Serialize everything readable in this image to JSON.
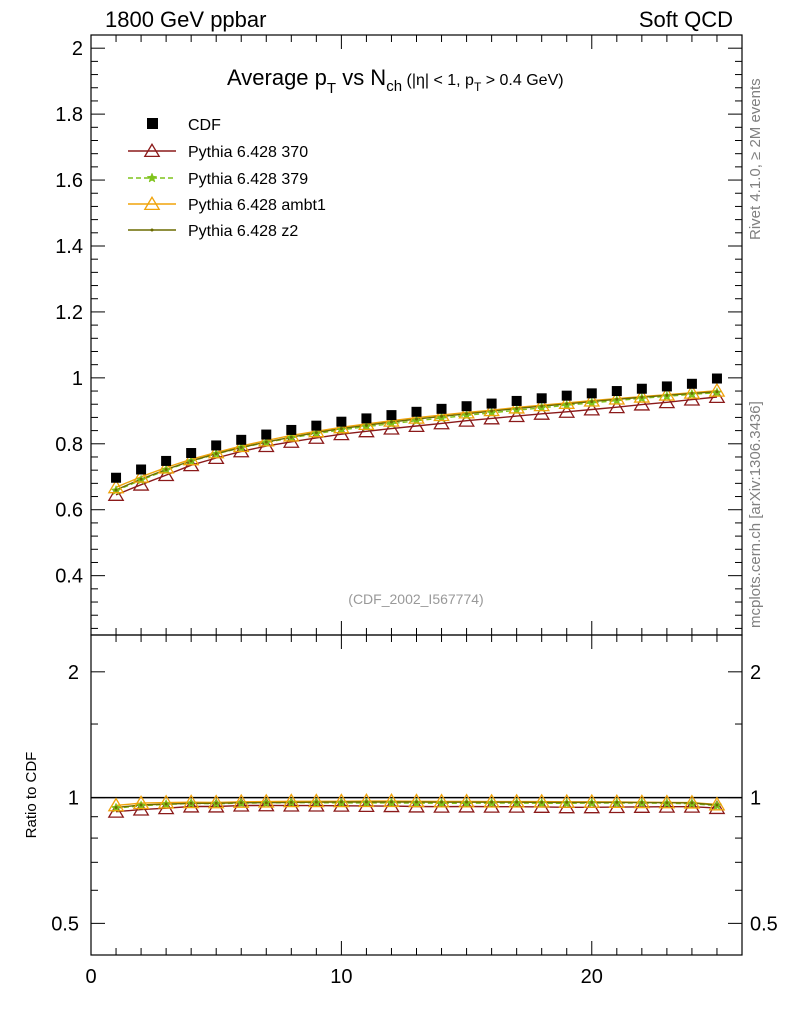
{
  "header": {
    "energy_label": "1800 GeV ppbar",
    "category_label": "Soft QCD"
  },
  "side": {
    "rivet_label": "Rivet 4.1.0, ≥ 2M events",
    "source_label": "mcplots.cern.ch [arXiv:1306.3436]"
  },
  "plot": {
    "title_main": "Average p",
    "title_sub1": "T",
    "title_mid": " vs N",
    "title_sub2": "ch",
    "title_cut_a": " (|η| < 1, p",
    "title_cut_sub": "T",
    "title_cut_b": " > 0.4 GeV)",
    "analysis_id": "(CDF_2002_I567774)",
    "ratio_ylabel": "Ratio to CDF"
  },
  "chart_data": [
    {
      "type": "scatter",
      "title": "Average pT vs Nch (|η| < 1, pT > 0.4 GeV)",
      "xlim": [
        0,
        26
      ],
      "ylim": [
        0.22,
        2.04
      ],
      "yticks": [
        0.4,
        0.6,
        0.8,
        1,
        1.2,
        1.4,
        1.6,
        1.8,
        2
      ],
      "ytick_labels": [
        "0.4",
        "0.6",
        "0.8",
        "1",
        "1.2",
        "1.4",
        "1.6",
        "1.8",
        "2"
      ],
      "x": [
        1,
        2,
        3,
        4,
        5,
        6,
        7,
        8,
        9,
        10,
        11,
        12,
        13,
        14,
        15,
        16,
        17,
        18,
        19,
        20,
        21,
        22,
        23,
        24,
        25
      ],
      "series": [
        {
          "name": "CDF",
          "style": "data",
          "color": "#000000",
          "values": [
            0.697,
            0.722,
            0.748,
            0.772,
            0.795,
            0.812,
            0.828,
            0.842,
            0.855,
            0.867,
            0.877,
            0.887,
            0.897,
            0.906,
            0.914,
            0.922,
            0.93,
            0.938,
            0.946,
            0.953,
            0.96,
            0.967,
            0.974,
            0.982,
            0.998
          ]
        },
        {
          "name": "Pythia 6.428 370",
          "style": "triangle-open",
          "color": "#8b1a1a",
          "values": [
            0.645,
            0.676,
            0.705,
            0.735,
            0.757,
            0.777,
            0.793,
            0.806,
            0.818,
            0.829,
            0.838,
            0.846,
            0.854,
            0.862,
            0.87,
            0.877,
            0.884,
            0.891,
            0.897,
            0.904,
            0.911,
            0.919,
            0.926,
            0.934,
            0.942
          ]
        },
        {
          "name": "Pythia 6.428 379",
          "style": "star-dashed",
          "color": "#7fc31c",
          "values": [
            0.658,
            0.69,
            0.72,
            0.747,
            0.769,
            0.788,
            0.804,
            0.818,
            0.831,
            0.842,
            0.852,
            0.861,
            0.87,
            0.878,
            0.886,
            0.894,
            0.902,
            0.909,
            0.917,
            0.924,
            0.931,
            0.938,
            0.944,
            0.95,
            0.955
          ]
        },
        {
          "name": "Pythia 6.428 ambt1",
          "style": "triangle-open",
          "color": "#f0a30a",
          "values": [
            0.668,
            0.7,
            0.728,
            0.753,
            0.774,
            0.793,
            0.81,
            0.825,
            0.838,
            0.85,
            0.86,
            0.87,
            0.879,
            0.887,
            0.895,
            0.902,
            0.91,
            0.917,
            0.924,
            0.931,
            0.937,
            0.943,
            0.949,
            0.955,
            0.961
          ]
        },
        {
          "name": "Pythia 6.428 z2",
          "style": "dot-line",
          "color": "#6b6b00",
          "values": [
            0.66,
            0.693,
            0.722,
            0.748,
            0.77,
            0.789,
            0.805,
            0.82,
            0.834,
            0.846,
            0.856,
            0.866,
            0.875,
            0.883,
            0.891,
            0.899,
            0.907,
            0.914,
            0.921,
            0.928,
            0.935,
            0.941,
            0.947,
            0.953,
            0.958
          ]
        }
      ],
      "legend_position": "top-left"
    },
    {
      "type": "line",
      "ylabel": "Ratio to CDF",
      "xlim": [
        0,
        26
      ],
      "ylim": [
        0.42,
        2.45
      ],
      "yscale": "log",
      "yticks": [
        0.5,
        1,
        2
      ],
      "ytick_labels": [
        "0.5",
        "1",
        "2"
      ],
      "xticks": [
        0,
        10,
        20
      ],
      "xtick_labels": [
        "0",
        "10",
        "20"
      ],
      "x": [
        1,
        2,
        3,
        4,
        5,
        6,
        7,
        8,
        9,
        10,
        11,
        12,
        13,
        14,
        15,
        16,
        17,
        18,
        19,
        20,
        21,
        22,
        23,
        24,
        25
      ],
      "series": [
        {
          "name": "Pythia 6.428 370",
          "color": "#8b1a1a",
          "values": [
            0.925,
            0.936,
            0.943,
            0.952,
            0.952,
            0.957,
            0.958,
            0.957,
            0.957,
            0.956,
            0.955,
            0.954,
            0.952,
            0.951,
            0.952,
            0.951,
            0.951,
            0.95,
            0.948,
            0.948,
            0.949,
            0.95,
            0.951,
            0.951,
            0.944
          ]
        },
        {
          "name": "Pythia 6.428 379",
          "color": "#7fc31c",
          "values": [
            0.944,
            0.956,
            0.963,
            0.968,
            0.967,
            0.97,
            0.971,
            0.972,
            0.972,
            0.971,
            0.971,
            0.971,
            0.97,
            0.969,
            0.969,
            0.97,
            0.97,
            0.969,
            0.969,
            0.97,
            0.97,
            0.97,
            0.969,
            0.967,
            0.957
          ]
        },
        {
          "name": "Pythia 6.428 ambt1",
          "color": "#f0a30a",
          "values": [
            0.958,
            0.97,
            0.973,
            0.975,
            0.974,
            0.977,
            0.978,
            0.98,
            0.98,
            0.98,
            0.981,
            0.981,
            0.98,
            0.979,
            0.979,
            0.978,
            0.978,
            0.978,
            0.977,
            0.977,
            0.976,
            0.975,
            0.974,
            0.973,
            0.963
          ]
        },
        {
          "name": "Pythia 6.428 z2",
          "color": "#6b6b00",
          "values": [
            0.947,
            0.96,
            0.965,
            0.969,
            0.969,
            0.972,
            0.972,
            0.974,
            0.975,
            0.976,
            0.976,
            0.976,
            0.976,
            0.975,
            0.975,
            0.975,
            0.975,
            0.974,
            0.974,
            0.974,
            0.974,
            0.973,
            0.972,
            0.971,
            0.96
          ]
        }
      ]
    }
  ]
}
